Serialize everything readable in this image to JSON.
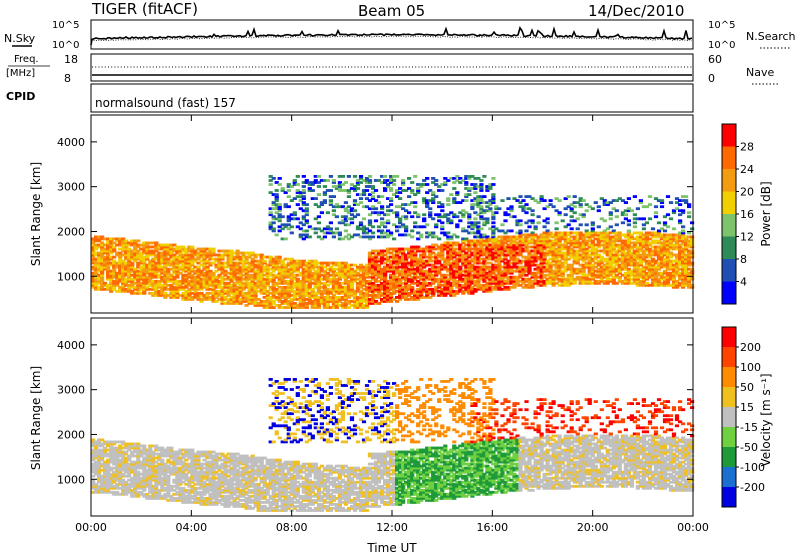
{
  "header": {
    "radar": "TIGER (fitACF)",
    "beam": "Beam 05",
    "date": "14/Dec/2010"
  },
  "noise_panel": {
    "left_label": "N.Sky",
    "right_label": "N.Search",
    "left_ticks": [
      "10^5",
      "10^0"
    ],
    "right_ticks": [
      "10^5",
      "10^0"
    ]
  },
  "freq_panel": {
    "left_label_1": "Freq.",
    "left_label_2": "[MHz]",
    "left_ticks": [
      "18",
      "8"
    ],
    "right_ticks": [
      "60",
      "0"
    ],
    "right_label": "Nave"
  },
  "cpid": {
    "label": "CPID",
    "text": "normalsound (fast) 157"
  },
  "chart_data": [
    {
      "type": "heatmap",
      "title": "Power",
      "ylabel": "Slant Range [km]",
      "xlabel": "Time UT",
      "x_ticks": [
        "00:00",
        "04:00",
        "08:00",
        "12:00",
        "16:00",
        "20:00",
        "00:00"
      ],
      "x_range_hours": [
        0,
        24
      ],
      "y_ticks": [
        1000,
        2000,
        3000,
        4000
      ],
      "ylim": [
        180,
        4600
      ],
      "colorbar": {
        "label": "Power [dB]",
        "ticks": [
          "28",
          "24",
          "20",
          "16",
          "12",
          "8",
          "4"
        ],
        "colors": [
          "#0000ff",
          "#1f4fb3",
          "#2e8b57",
          "#7dc36b",
          "#f2d000",
          "#f39c12",
          "#ff6a00",
          "#ff0000"
        ]
      }
    },
    {
      "type": "heatmap",
      "title": "Velocity",
      "ylabel": "Slant Range [km]",
      "xlabel": "Time UT",
      "x_ticks": [
        "00:00",
        "04:00",
        "08:00",
        "12:00",
        "16:00",
        "20:00",
        "00:00"
      ],
      "x_range_hours": [
        0,
        24
      ],
      "y_ticks": [
        1000,
        2000,
        3000,
        4000
      ],
      "ylim": [
        180,
        4600
      ],
      "colorbar": {
        "label": "Velocity [m s⁻¹]",
        "ticks": [
          "200",
          "100",
          "50",
          "15",
          "-15",
          "-50",
          "-100",
          "-200"
        ],
        "colors": [
          "#0000e0",
          "#1a6fd0",
          "#1f9a3a",
          "#6fd040",
          "#c0c0c0",
          "#f0c020",
          "#ff8c00",
          "#ff4400",
          "#ff0000"
        ]
      }
    }
  ]
}
